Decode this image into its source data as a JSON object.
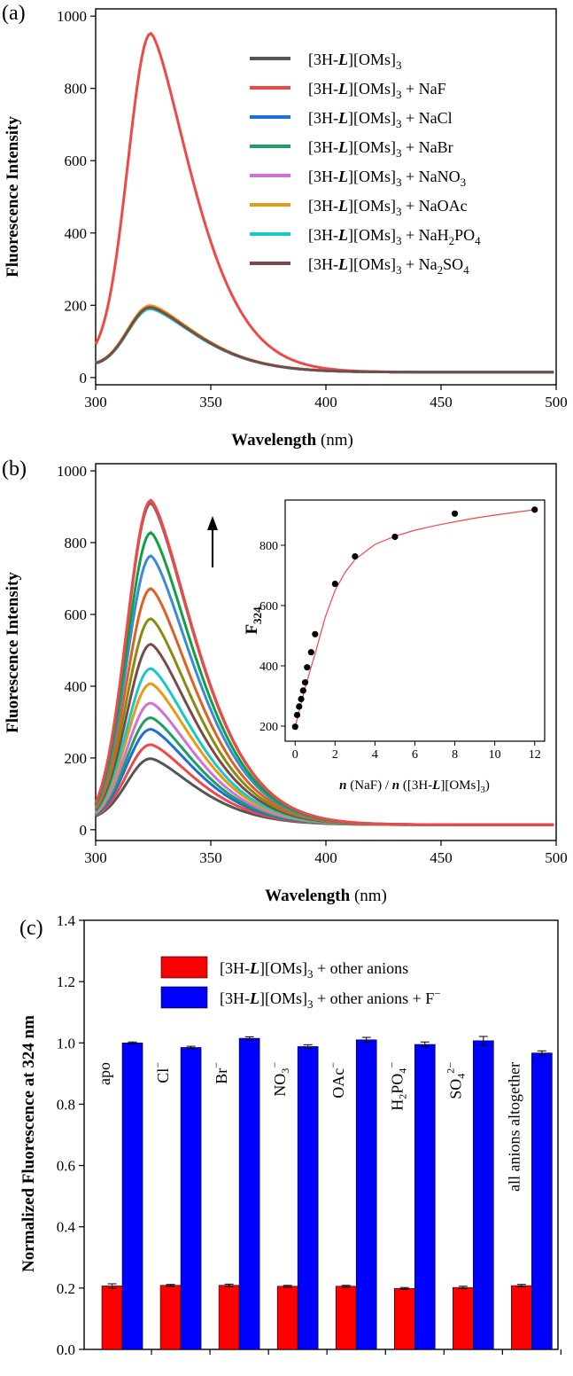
{
  "chart_data": [
    {
      "id": "a",
      "type": "line",
      "panel_label": "(a)",
      "xlabel": "Wavelength",
      "xunit": "(nm)",
      "ylabel": "Fluorescence Intensity",
      "xlim": [
        300,
        500
      ],
      "ylim": [
        -20,
        1020
      ],
      "xticks": [
        300,
        350,
        400,
        450,
        500
      ],
      "yticks": [
        0,
        200,
        400,
        600,
        800,
        1000
      ],
      "legend_position": "top-right",
      "series": [
        {
          "name": "[3H-L][OMs]3",
          "label_base": "[3H-",
          "label_italic": "L",
          "label_mid": "][OMs]",
          "label_sub1": "3",
          "label_tail": "",
          "label_sub2": "",
          "label_tail2": "",
          "color": "#555555",
          "peak": 195,
          "width_left": 10,
          "tail_decay": 27,
          "base": 15,
          "start": 40
        },
        {
          "name": "[3H-L][OMs]3 + NaF",
          "label_base": "[3H-",
          "label_italic": "L",
          "label_mid": "][OMs]",
          "label_sub1": "3",
          "label_tail": " + NaF",
          "label_sub2": "",
          "label_tail2": "",
          "color": "#f04848",
          "peak": 952,
          "width_left": 10,
          "tail_decay": 24,
          "base": 15,
          "start": 92
        },
        {
          "name": "[3H-L][OMs]3 + NaCl",
          "label_base": "[3H-",
          "label_italic": "L",
          "label_mid": "][OMs]",
          "label_sub1": "3",
          "label_tail": " + NaCl",
          "label_sub2": "",
          "label_tail2": "",
          "color": "#1f6fd0",
          "peak": 192,
          "width_left": 10,
          "tail_decay": 27,
          "base": 15,
          "start": 39
        },
        {
          "name": "[3H-L][OMs]3 + NaBr",
          "label_base": "[3H-",
          "label_italic": "L",
          "label_mid": "][OMs]",
          "label_sub1": "3",
          "label_tail": " + NaBr",
          "label_sub2": "",
          "label_tail2": "",
          "color": "#1aa060",
          "peak": 196,
          "width_left": 10,
          "tail_decay": 27,
          "base": 15,
          "start": 40
        },
        {
          "name": "[3H-L][OMs]3 + NaNO3",
          "label_base": "[3H-",
          "label_italic": "L",
          "label_mid": "][OMs]",
          "label_sub1": "3",
          "label_tail": " + NaNO",
          "label_sub2": "3",
          "label_tail2": "",
          "color": "#d070d8",
          "peak": 197,
          "width_left": 10,
          "tail_decay": 27,
          "base": 15,
          "start": 40
        },
        {
          "name": "[3H-L][OMs]3 + NaOAc",
          "label_base": "[3H-",
          "label_italic": "L",
          "label_mid": "][OMs]",
          "label_sub1": "3",
          "label_tail": " + NaOAc",
          "label_sub2": "",
          "label_tail2": "",
          "color": "#e89a10",
          "peak": 199,
          "width_left": 10,
          "tail_decay": 27,
          "base": 15,
          "start": 41
        },
        {
          "name": "[3H-L][OMs]3 + NaH2PO4",
          "label_base": "[3H-",
          "label_italic": "L",
          "label_mid": "][OMs]",
          "label_sub1": "3",
          "label_tail": " + NaH",
          "label_sub2": "2",
          "label_tail2": "PO",
          "label_sub3": "4",
          "color": "#18c8c8",
          "peak": 190,
          "width_left": 10,
          "tail_decay": 27,
          "base": 15,
          "start": 39
        },
        {
          "name": "[3H-L][OMs]3 + Na2SO4",
          "label_base": "[3H-",
          "label_italic": "L",
          "label_mid": "][OMs]",
          "label_sub1": "3",
          "label_tail": " + Na",
          "label_sub2": "2",
          "label_tail2": "SO",
          "label_sub3": "4",
          "color": "#7a4a4a",
          "peak": 194,
          "width_left": 10,
          "tail_decay": 27,
          "base": 15,
          "start": 40
        }
      ]
    },
    {
      "id": "b",
      "type": "line",
      "panel_label": "(b)",
      "xlabel": "Wavelength",
      "xunit": "(nm)",
      "ylabel": "Fluorescence Intensity",
      "xlim": [
        300,
        500
      ],
      "ylim": [
        -30,
        1020
      ],
      "xticks": [
        300,
        350,
        400,
        450,
        500
      ],
      "yticks": [
        0,
        200,
        400,
        600,
        800,
        1000
      ],
      "arrow_direction": "up",
      "series": [
        {
          "peak": 198,
          "color": "#555555"
        },
        {
          "peak": 237,
          "color": "#f04848"
        },
        {
          "peak": 280,
          "color": "#1f6fd0"
        },
        {
          "peak": 312,
          "color": "#1aa060"
        },
        {
          "peak": 353,
          "color": "#d070d8"
        },
        {
          "peak": 407,
          "color": "#e89a10"
        },
        {
          "peak": 449,
          "color": "#18c8c8"
        },
        {
          "peak": 517,
          "color": "#7a4a4a"
        },
        {
          "peak": 588,
          "color": "#8a8a10"
        },
        {
          "peak": 672,
          "color": "#e06020"
        },
        {
          "peak": 763,
          "color": "#3a8ad8"
        },
        {
          "peak": 828,
          "color": "#10a040"
        },
        {
          "peak": 910,
          "color": "#7a6a6a"
        },
        {
          "peak": 918,
          "color": "#f04848"
        }
      ],
      "inset": {
        "type": "scatter",
        "ylabel": "F",
        "ylabel_sub": "324",
        "xlabel_n1": "n",
        "xlabel_mid1": " (NaF) / ",
        "xlabel_n2": "n",
        "xlabel_mid2": " ([3H-",
        "xlabel_L": "L",
        "xlabel_end": "][OMs]",
        "xlabel_sub": "3",
        "xlabel_close": ")",
        "xlim": [
          -0.5,
          12.5
        ],
        "ylim": [
          150,
          950
        ],
        "xticks": [
          0,
          2,
          4,
          6,
          8,
          10,
          12
        ],
        "yticks": [
          200,
          400,
          600,
          800
        ],
        "x": [
          0,
          0.1,
          0.2,
          0.3,
          0.4,
          0.5,
          0.6,
          0.8,
          1.0,
          2,
          3,
          5,
          8,
          12
        ],
        "y": [
          198,
          237,
          265,
          290,
          318,
          345,
          395,
          445,
          505,
          672,
          763,
          828,
          905,
          918
        ],
        "fit_color": "#f04848",
        "fit_x": [
          0,
          0.25,
          0.5,
          0.75,
          1.0,
          1.5,
          2,
          2.5,
          3,
          4,
          5,
          6,
          7,
          8,
          9,
          10,
          11,
          12
        ],
        "fit_y": [
          198,
          262,
          326,
          385,
          440,
          560,
          650,
          710,
          753,
          803,
          830,
          850,
          865,
          878,
          890,
          900,
          909,
          918
        ]
      }
    },
    {
      "id": "c",
      "type": "bar",
      "panel_label": "(c)",
      "ylabel": "Normalized Fluorescence at 324 nm",
      "ylim": [
        0.0,
        1.4
      ],
      "yticks": [
        0.0,
        0.2,
        0.4,
        0.6,
        0.8,
        1.0,
        1.2,
        1.4
      ],
      "categories": [
        "apo",
        "Cl",
        "Br",
        "NO3",
        "OAc",
        "H2PO4",
        "SO4",
        "all anions altogether"
      ],
      "category_labels": [
        {
          "base": "apo",
          "sup": "",
          "sub": ""
        },
        {
          "base": "Cl",
          "sup": "−",
          "sub": ""
        },
        {
          "base": "Br",
          "sup": "−",
          "sub": ""
        },
        {
          "base": "NO",
          "sub": "3",
          "sup": "−"
        },
        {
          "base": "OAc",
          "sup": "−",
          "sub": ""
        },
        {
          "base": "H",
          "sub": "2",
          "mid": "PO",
          "sub2": "4",
          "sup": "−"
        },
        {
          "base": "SO",
          "sub": "4",
          "sup": "2−"
        },
        {
          "base": "all anions altogether",
          "sup": "",
          "sub": ""
        }
      ],
      "series": [
        {
          "name": "[3H-L][OMs]3 + other anions",
          "label_base": "[3H-",
          "label_italic": "L",
          "label_mid": "][OMs]",
          "label_sub": "3",
          "label_tail": " + other anions",
          "color": "#ff0000",
          "values": [
            0.207,
            0.209,
            0.209,
            0.206,
            0.206,
            0.199,
            0.202,
            0.208
          ],
          "errors": [
            0.007,
            0.003,
            0.004,
            0.003,
            0.003,
            0.003,
            0.004,
            0.004
          ]
        },
        {
          "name": "[3H-L][OMs]3 + other anions + F−",
          "label_base": "[3H-",
          "label_italic": "L",
          "label_mid": "][OMs]",
          "label_sub": "3",
          "label_tail": " + other anions + F",
          "label_sup": "−",
          "color": "#0000ff",
          "values": [
            1.0,
            0.985,
            1.015,
            0.988,
            1.01,
            0.995,
            1.007,
            0.967
          ],
          "errors": [
            0.003,
            0.004,
            0.005,
            0.006,
            0.008,
            0.008,
            0.014,
            0.007
          ]
        }
      ],
      "legend_position": "top-center"
    }
  ]
}
